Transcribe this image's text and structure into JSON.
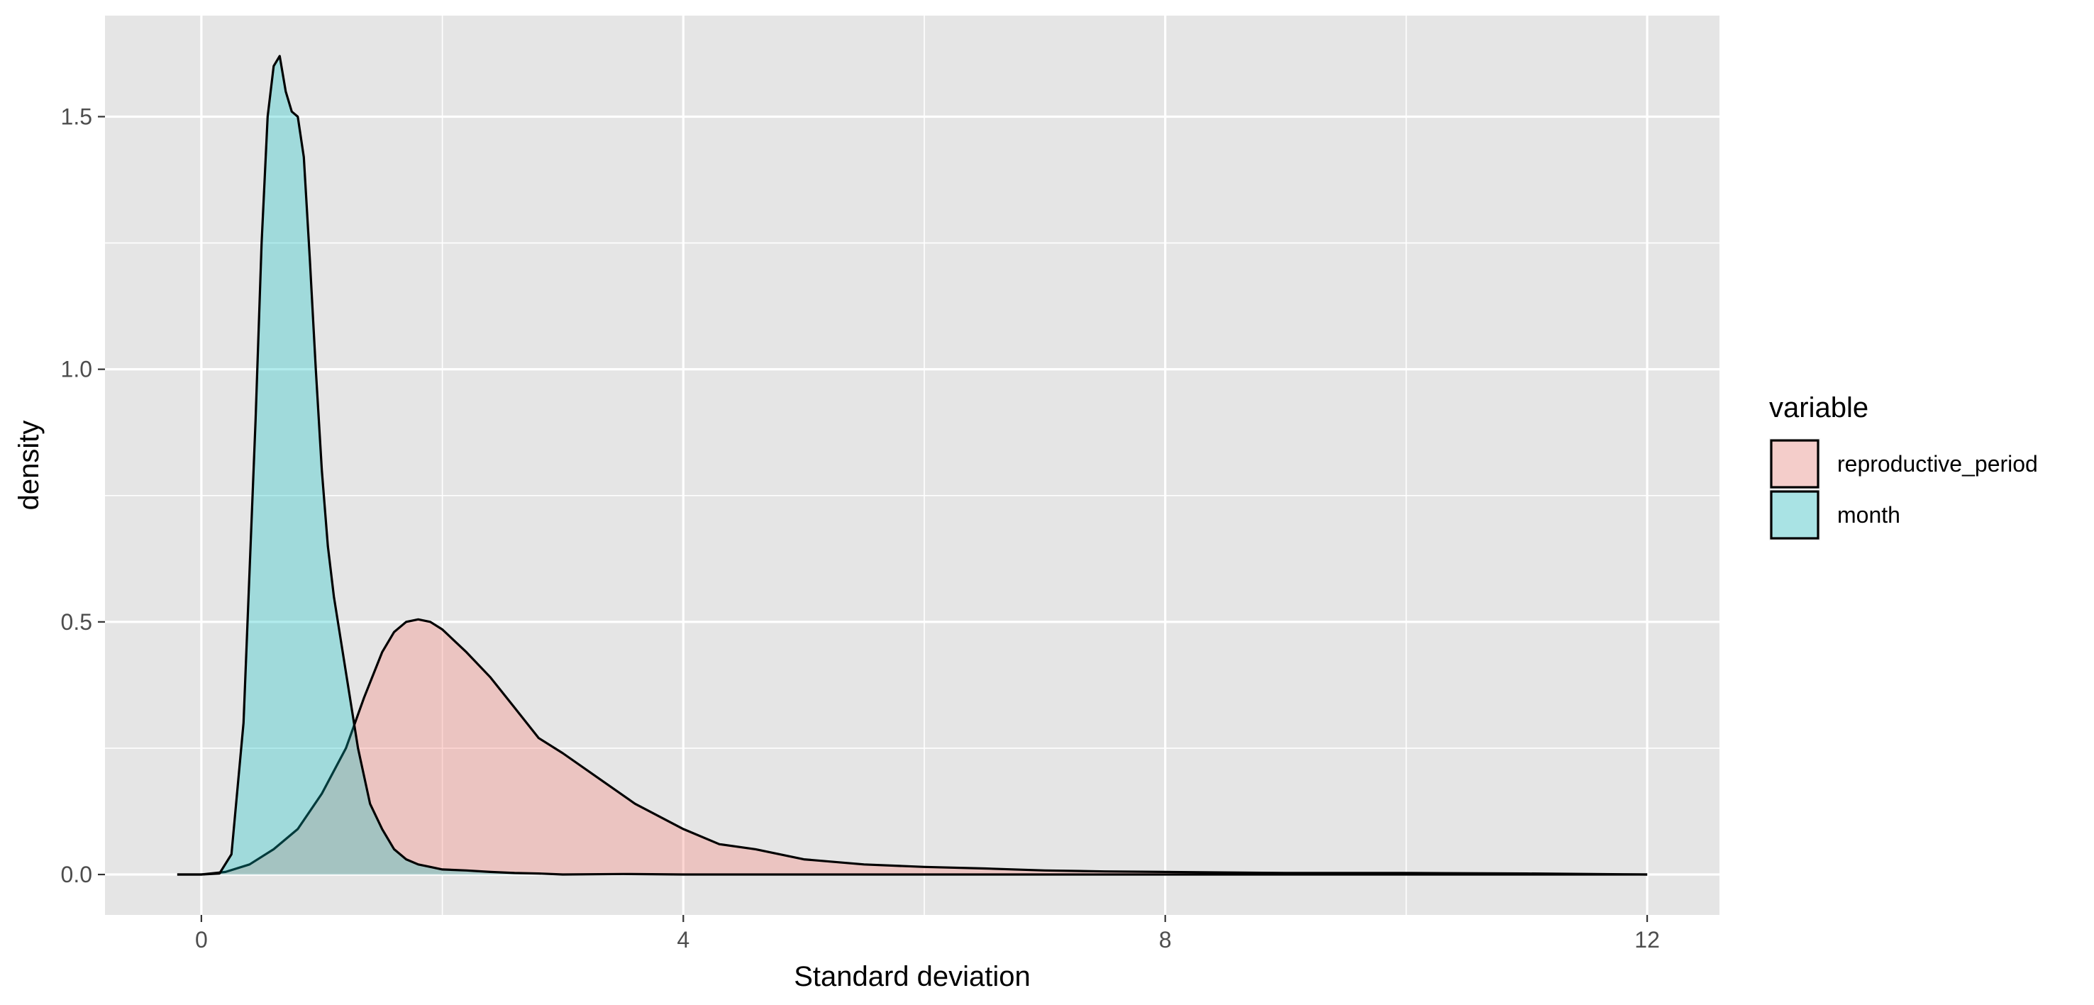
{
  "chart_data": {
    "type": "area",
    "title": "",
    "xlabel": "Standard deviation",
    "ylabel": "density",
    "xlim": [
      -0.8,
      12.6
    ],
    "ylim": [
      -0.08,
      1.7
    ],
    "x_ticks": [
      0,
      4,
      8,
      12
    ],
    "x_tick_labels": [
      "0",
      "4",
      "8",
      "12"
    ],
    "x_minor_ticks": [
      2,
      6,
      10
    ],
    "y_ticks": [
      0.0,
      0.5,
      1.0,
      1.5
    ],
    "y_tick_labels": [
      "0.0",
      "0.5",
      "1.0",
      "1.5"
    ],
    "y_minor_ticks": [
      0.25,
      0.75,
      1.25
    ],
    "grid": true,
    "panel_background": "#e5e5e5",
    "legend": {
      "title": "variable",
      "position": "right",
      "entries": [
        {
          "label": "reproductive_period",
          "color": "#f8766d"
        },
        {
          "label": "month",
          "color": "#00bfc4"
        }
      ]
    },
    "series": [
      {
        "name": "reproductive_period",
        "color": "#f8766d",
        "fill_opacity": 0.3,
        "x": [
          -0.2,
          0.0,
          0.2,
          0.4,
          0.6,
          0.8,
          1.0,
          1.2,
          1.35,
          1.5,
          1.6,
          1.7,
          1.8,
          1.9,
          2.0,
          2.2,
          2.4,
          2.6,
          2.8,
          3.0,
          3.3,
          3.6,
          4.0,
          4.3,
          4.6,
          5.0,
          5.5,
          6.0,
          6.5,
          7.0,
          7.5,
          8.0,
          9.0,
          10.0,
          11.0,
          12.0
        ],
        "y": [
          0.0,
          0.0,
          0.005,
          0.02,
          0.05,
          0.09,
          0.16,
          0.25,
          0.35,
          0.44,
          0.48,
          0.5,
          0.505,
          0.5,
          0.485,
          0.44,
          0.39,
          0.33,
          0.27,
          0.24,
          0.19,
          0.14,
          0.09,
          0.06,
          0.05,
          0.03,
          0.02,
          0.015,
          0.012,
          0.008,
          0.006,
          0.005,
          0.003,
          0.003,
          0.002,
          0.0
        ]
      },
      {
        "name": "month",
        "color": "#00bfc4",
        "fill_opacity": 0.3,
        "x": [
          -0.2,
          0.0,
          0.15,
          0.25,
          0.35,
          0.45,
          0.5,
          0.55,
          0.6,
          0.65,
          0.7,
          0.75,
          0.8,
          0.85,
          0.9,
          0.95,
          1.0,
          1.05,
          1.1,
          1.2,
          1.3,
          1.4,
          1.5,
          1.6,
          1.7,
          1.8,
          1.9,
          2.0,
          2.2,
          2.4,
          2.6,
          2.8,
          3.0,
          3.5,
          4.0,
          6.0,
          9.0,
          12.0
        ],
        "y": [
          0.0,
          0.0,
          0.002,
          0.04,
          0.3,
          0.9,
          1.25,
          1.5,
          1.6,
          1.62,
          1.55,
          1.51,
          1.5,
          1.42,
          1.22,
          1.0,
          0.8,
          0.65,
          0.55,
          0.4,
          0.25,
          0.14,
          0.09,
          0.05,
          0.03,
          0.02,
          0.015,
          0.01,
          0.008,
          0.005,
          0.003,
          0.002,
          0.0,
          0.001,
          0.0,
          0.0,
          0.0,
          0.0
        ]
      }
    ]
  }
}
